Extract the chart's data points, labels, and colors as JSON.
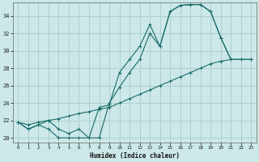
{
  "xlabel": "Humidex (Indice chaleur)",
  "background_color": "#cce8e8",
  "grid_color": "#aacccc",
  "line_color": "#1a6b6b",
  "xlim": [
    -0.5,
    23.5
  ],
  "ylim": [
    19.5,
    35.5
  ],
  "xticks": [
    0,
    1,
    2,
    3,
    4,
    5,
    6,
    7,
    8,
    9,
    10,
    11,
    12,
    13,
    14,
    15,
    16,
    17,
    18,
    19,
    20,
    21,
    22,
    23
  ],
  "yticks": [
    20,
    22,
    24,
    26,
    28,
    30,
    32,
    34
  ],
  "line1_x": [
    0,
    1,
    2,
    3,
    4,
    5,
    6,
    7,
    8,
    9,
    10,
    11,
    12,
    13,
    14,
    15,
    16,
    17,
    18,
    19,
    20,
    21,
    22,
    23
  ],
  "line1_y": [
    21.8,
    21.0,
    21.5,
    21.0,
    20.0,
    20.0,
    20.0,
    20.0,
    20.0,
    24.0,
    25.8,
    27.5,
    29.0,
    32.0,
    30.5,
    34.5,
    35.2,
    35.3,
    35.3,
    34.5,
    31.5,
    29.0,
    29.0,
    29.0
  ],
  "line2_x": [
    0,
    1,
    2,
    3,
    4,
    5,
    6,
    7,
    8,
    9,
    10,
    11,
    12,
    13,
    14,
    15,
    16,
    17,
    18,
    19,
    20,
    21,
    22,
    23
  ],
  "line2_y": [
    21.8,
    21.0,
    21.5,
    22.0,
    21.0,
    20.5,
    21.0,
    20.0,
    23.5,
    23.8,
    27.5,
    29.0,
    30.5,
    33.0,
    30.5,
    34.5,
    35.2,
    35.3,
    35.3,
    34.5,
    31.5,
    29.0,
    29.0,
    29.0
  ],
  "line3_x": [
    0,
    1,
    2,
    3,
    4,
    5,
    6,
    7,
    8,
    9,
    10,
    11,
    12,
    13,
    14,
    15,
    16,
    17,
    18,
    19,
    20,
    21,
    22,
    23
  ],
  "line3_y": [
    21.8,
    21.5,
    21.8,
    22.0,
    22.2,
    22.5,
    22.8,
    23.0,
    23.3,
    23.5,
    24.0,
    24.5,
    25.0,
    25.5,
    26.0,
    26.5,
    27.0,
    27.5,
    28.0,
    28.5,
    28.8,
    29.0,
    29.0,
    29.0
  ]
}
